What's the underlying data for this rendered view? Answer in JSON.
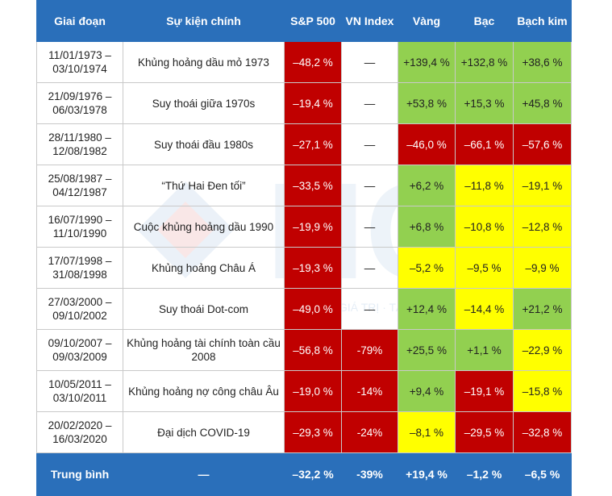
{
  "colors": {
    "header": "#2a6fba",
    "red": "#c00000",
    "green": "#92d050",
    "yellow": "#ffff00"
  },
  "watermark": {
    "text": "GIÁ TRỊ · TÀI SẢN · CỘNG ĐỒNG",
    "logo": "HCT"
  },
  "headers": [
    "Giai đoạn",
    "Sự kiện chính",
    "S&P 500",
    "VN Index",
    "Vàng",
    "Bạc",
    "Bạch kim"
  ],
  "rows": [
    {
      "period": "11/01/1973 – 03/10/1974",
      "event": "Khủng hoảng dầu mỏ 1973",
      "sp500": "–48,2 %",
      "vnindex": "—",
      "gold": "+139,4 %",
      "silver": "+132,8 %",
      "platinum": "+38,6 %"
    },
    {
      "period": "21/09/1976 – 06/03/1978",
      "event": "Suy thoái giữa 1970s",
      "sp500": "–19,4 %",
      "vnindex": "—",
      "gold": "+53,8 %",
      "silver": "+15,3 %",
      "platinum": "+45,8 %"
    },
    {
      "period": "28/11/1980 – 12/08/1982",
      "event": "Suy thoái đầu 1980s",
      "sp500": "–27,1 %",
      "vnindex": "—",
      "gold": "–46,0 %",
      "silver": "–66,1 %",
      "platinum": "–57,6 %"
    },
    {
      "period": "25/08/1987 – 04/12/1987",
      "event": "“Thứ Hai Đen tối”",
      "sp500": "–33,5 %",
      "vnindex": "—",
      "gold": "+6,2 %",
      "silver": "–11,8 %",
      "platinum": "–19,1 %"
    },
    {
      "period": "16/07/1990 – 11/10/1990",
      "event": "Cuộc khủng hoảng dầu 1990",
      "sp500": "–19,9 %",
      "vnindex": "—",
      "gold": "+6,8 %",
      "silver": "–10,8 %",
      "platinum": "–12,8 %"
    },
    {
      "period": "17/07/1998 – 31/08/1998",
      "event": "Khủng hoảng Châu Á",
      "sp500": "–19,3 %",
      "vnindex": "—",
      "gold": "–5,2 %",
      "silver": "–9,5 %",
      "platinum": "–9,9 %"
    },
    {
      "period": "27/03/2000 – 09/10/2002",
      "event": "Suy thoái Dot-com",
      "sp500": "–49,0 %",
      "vnindex": "—",
      "gold": "+12,4 %",
      "silver": "–14,4 %",
      "platinum": "+21,2 %"
    },
    {
      "period": "09/10/2007 – 09/03/2009",
      "event": "Khủng hoảng tài chính toàn cầu 2008",
      "sp500": "–56,8 %",
      "vnindex": "-79%",
      "gold": "+25,5 %",
      "silver": "+1,1 %",
      "platinum": "–22,9 %"
    },
    {
      "period": "10/05/2011 – 03/10/2011",
      "event": "Khủng hoảng nợ công châu Âu",
      "sp500": "–19,0 %",
      "vnindex": "-14%",
      "gold": "+9,4 %",
      "silver": "–19,1 %",
      "platinum": "–15,8 %"
    },
    {
      "period": "20/02/2020 – 16/03/2020",
      "event": "Đại dịch COVID-19",
      "sp500": "–29,3 %",
      "vnindex": "-24%",
      "gold": "–8,1 %",
      "silver": "–29,5 %",
      "platinum": "–32,8 %"
    }
  ],
  "cell_colors": [
    [
      "red",
      "white",
      "green",
      "green",
      "green"
    ],
    [
      "red",
      "white",
      "green",
      "green",
      "green"
    ],
    [
      "red",
      "white",
      "red",
      "red",
      "red"
    ],
    [
      "red",
      "white",
      "green",
      "yellow",
      "yellow"
    ],
    [
      "red",
      "white",
      "green",
      "yellow",
      "yellow"
    ],
    [
      "red",
      "white",
      "yellow",
      "yellow",
      "yellow"
    ],
    [
      "red",
      "white",
      "green",
      "yellow",
      "green"
    ],
    [
      "red",
      "red",
      "green",
      "green",
      "yellow"
    ],
    [
      "red",
      "red",
      "green",
      "red",
      "yellow"
    ],
    [
      "red",
      "red",
      "yellow",
      "red",
      "red"
    ]
  ],
  "footer": {
    "label": "Trung bình",
    "event": "—",
    "sp500": "–32,2 %",
    "vnindex": "-39%",
    "gold": "+19,4 %",
    "silver": "–1,2 %",
    "platinum": "–6,5 %"
  }
}
